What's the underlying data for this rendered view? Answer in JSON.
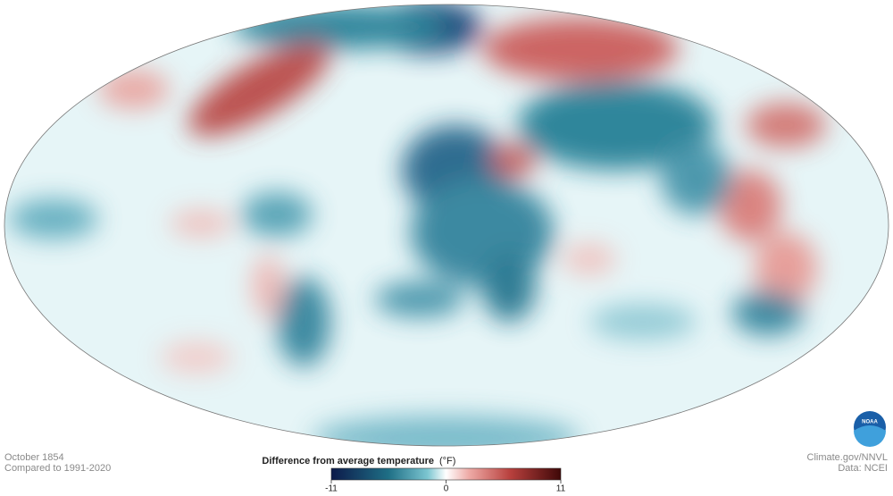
{
  "map": {
    "date": "October 1854",
    "baseline": "Compared to 1991-2020",
    "credit": "Climate.gov/NNVL",
    "source": "Data: NCEI",
    "logo": "NOAA"
  },
  "legend": {
    "title": "Difference from average temperature",
    "unit": "(°F)",
    "range": [
      -11,
      11
    ],
    "ticks": [
      -11,
      0,
      11
    ]
  }
}
